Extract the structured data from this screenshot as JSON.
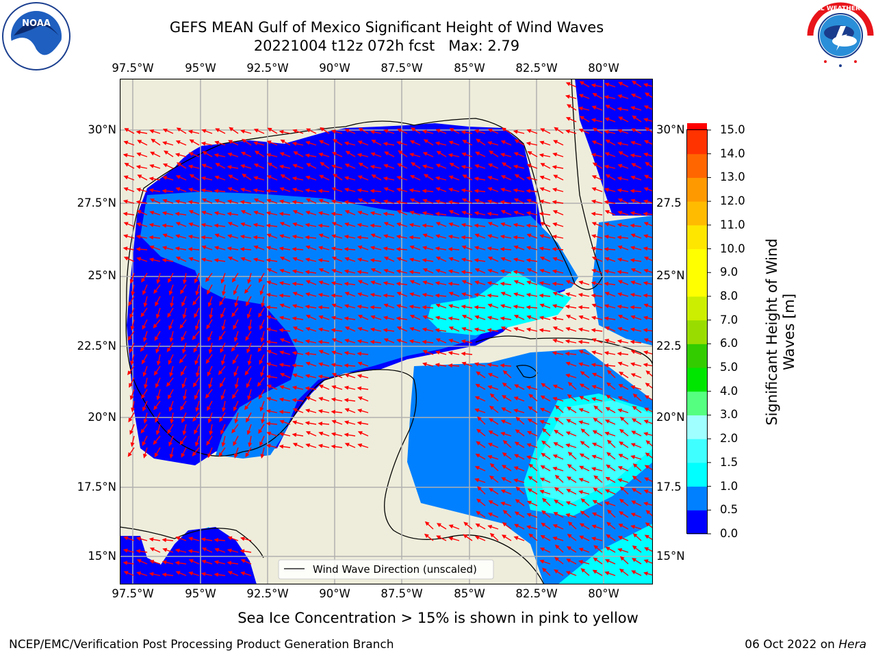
{
  "title": {
    "line1": "GEFS MEAN Gulf of Mexico Significant Height of Wind Waves",
    "line2": "20221004 t12z 072h fcst   Max: 2.79"
  },
  "map": {
    "lon_labels": [
      "97.5°W",
      "95°W",
      "92.5°W",
      "90°W",
      "87.5°W",
      "85°W",
      "82.5°W",
      "80°W"
    ],
    "lat_labels_left": [
      "30°N",
      "27.5°N",
      "25°N",
      "22.5°N",
      "20°N",
      "17.5°N",
      "15°N"
    ],
    "lat_labels_right": [
      "30°N",
      "27.5",
      "25°N",
      "22.5",
      "20°N",
      "17.5",
      "15°N"
    ],
    "legend_label": "Wind Wave Direction (unscaled)",
    "land_color": "#eeeddb",
    "arrow_color": "#ff0000"
  },
  "colorbar": {
    "label": "Significant Height of Wind Waves [m]",
    "label_line1": "Significant Height of Wind",
    "label_line2": "Waves [m]",
    "ticks": [
      "15.0",
      "14.0",
      "13.0",
      "12.0",
      "11.0",
      "10.0",
      "9.0",
      "8.0",
      "7.0",
      "6.0",
      "5.0",
      "4.0",
      "3.0",
      "2.0",
      "1.5",
      "1.0",
      "0.5",
      "0.0"
    ],
    "colors": [
      "#0000ff",
      "#0080ff",
      "#00ffff",
      "#40ffff",
      "#a0ffff",
      "#55ff80",
      "#00e600",
      "#33cc00",
      "#99dd00",
      "#ccee00",
      "#ffff00",
      "#ffff00",
      "#ffe600",
      "#ffbb00",
      "#ff9900",
      "#ff6600",
      "#ff3300",
      "#ff0000"
    ]
  },
  "caption": "Sea Ice Concentration > 15% is shown in pink to yellow",
  "footer": {
    "left": "NCEP/EMC/Verification Post Processing Product Generation Branch",
    "date": "06 Oct 2022 on ",
    "machine": "Hera"
  },
  "logos": {
    "noaa": "NOAA",
    "nws": "NATIONAL WEATHER SERVICE"
  }
}
